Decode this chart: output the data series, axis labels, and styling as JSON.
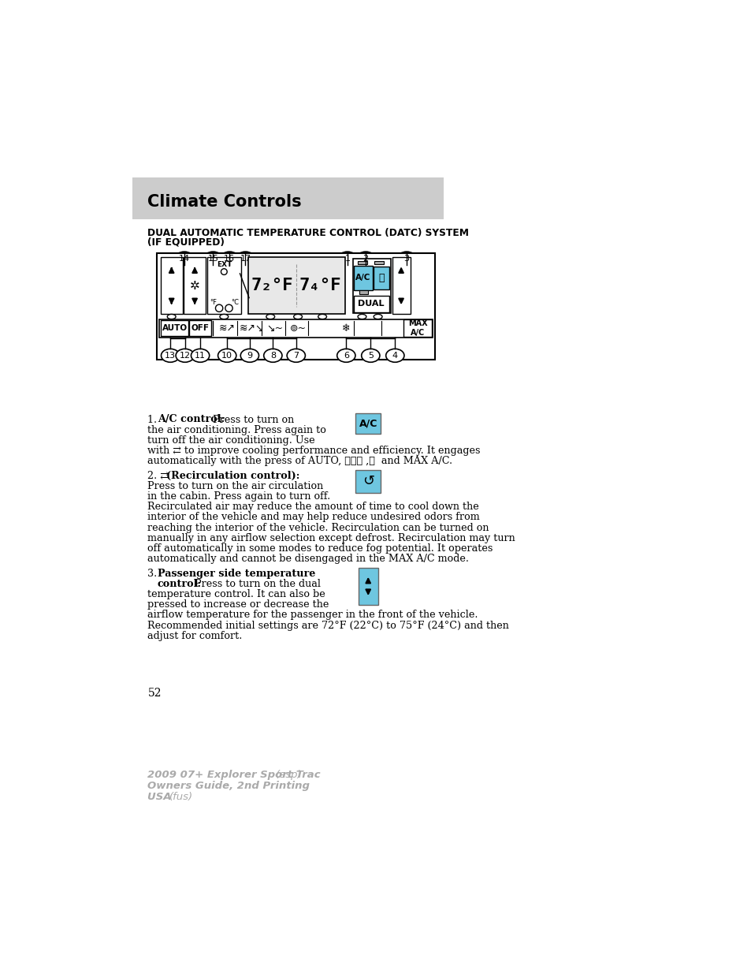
{
  "page_bg": "#ffffff",
  "header_bg": "#cccccc",
  "header_text": "Climate Controls",
  "header_text_color": "#000000",
  "section_title_line1": "DUAL AUTOMATIC TEMPERATURE CONTROL (DATC) SYSTEM",
  "section_title_line2": "(IF EQUIPPED)",
  "body_text_color": "#000000",
  "accent_color": "#6ec6e0",
  "page_number": "52",
  "footer_line1_normal": "2009 07+ Explorer Sport Trac ",
  "footer_line1_italic": "(esp)",
  "footer_line2": "Owners Guide, 2nd Printing",
  "footer_line3_normal": "USA ",
  "footer_line3_italic": "(fus)",
  "footer_color": "#aaaaaa"
}
